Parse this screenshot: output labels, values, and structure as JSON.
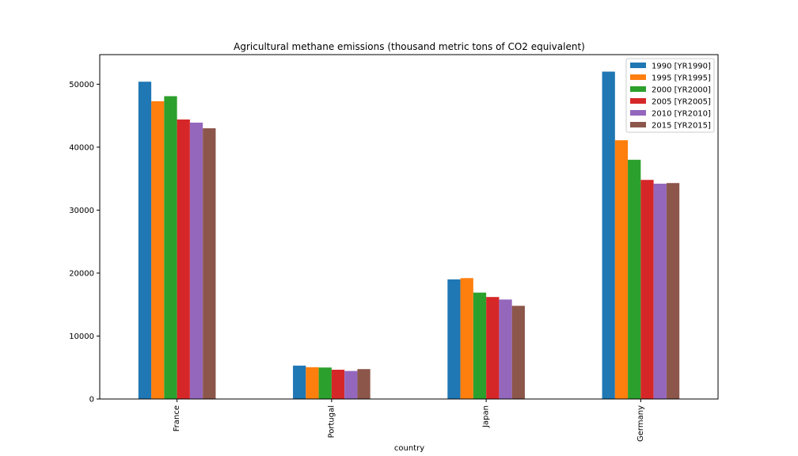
{
  "chart_data": {
    "type": "bar",
    "title": "Agricultural methane emissions (thousand metric tons of CO2 equivalent)",
    "xlabel": "country",
    "ylabel": "",
    "categories": [
      "France",
      "Portugal",
      "Japan",
      "Germany"
    ],
    "ylim": [
      0,
      54700
    ],
    "yticks": [
      0,
      10000,
      20000,
      30000,
      40000,
      50000
    ],
    "grid": false,
    "legend_position": "top-right",
    "series": [
      {
        "name": "1990 [YR1990]",
        "color": "#1f77b4",
        "values": [
          50400,
          5300,
          19000,
          52000
        ]
      },
      {
        "name": "1995 [YR1995]",
        "color": "#ff7f0e",
        "values": [
          47300,
          5050,
          19200,
          41100
        ]
      },
      {
        "name": "2000 [YR2000]",
        "color": "#2ca02c",
        "values": [
          48100,
          5000,
          16900,
          38000
        ]
      },
      {
        "name": "2005 [YR2005]",
        "color": "#d62728",
        "values": [
          44400,
          4650,
          16200,
          34800
        ]
      },
      {
        "name": "2010 [YR2010]",
        "color": "#9467bd",
        "values": [
          43900,
          4450,
          15800,
          34200
        ]
      },
      {
        "name": "2015 [YR2015]",
        "color": "#8c564b",
        "values": [
          43000,
          4750,
          14800,
          34300
        ]
      }
    ]
  }
}
